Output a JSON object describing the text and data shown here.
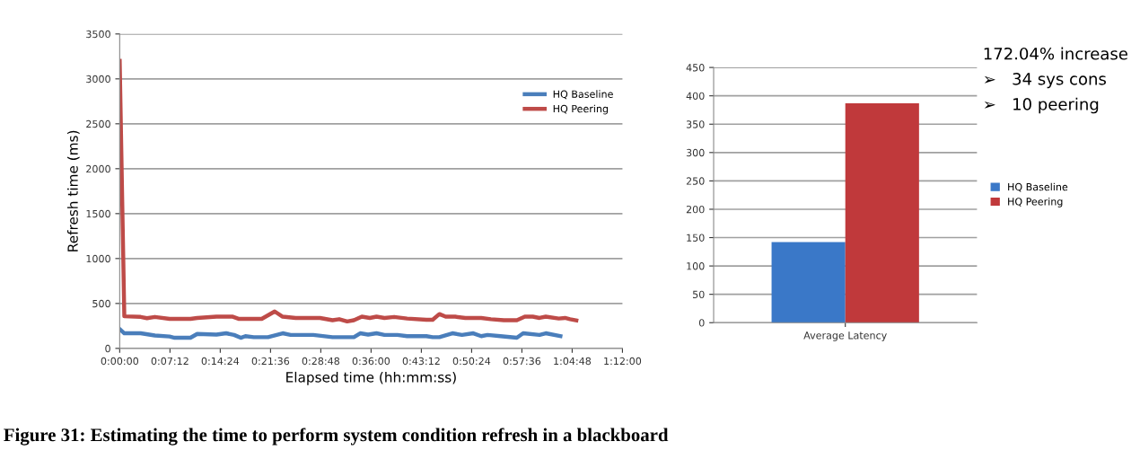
{
  "chart_data": [
    {
      "type": "line",
      "xlabel": "Elapsed time (hh:mm:ss)",
      "ylabel": "Refresh time (ms)",
      "xlim": [
        0,
        1.2
      ],
      "xticks": [
        {
          "value": 0,
          "label": "0:00:00"
        },
        {
          "value": 0.12,
          "label": "0:07:12"
        },
        {
          "value": 0.24,
          "label": "0:14:24"
        },
        {
          "value": 0.36,
          "label": "0:21:36"
        },
        {
          "value": 0.48,
          "label": "0:28:48"
        },
        {
          "value": 0.6,
          "label": "0:36:00"
        },
        {
          "value": 0.72,
          "label": "0:43:12"
        },
        {
          "value": 0.84,
          "label": "0:50:24"
        },
        {
          "value": 0.96,
          "label": "0:57:36"
        },
        {
          "value": 1.08,
          "label": "1:04:48"
        },
        {
          "value": 1.2,
          "label": "1:12:00"
        }
      ],
      "ylim": [
        0,
        3500
      ],
      "yticks": [
        0,
        500,
        1000,
        1500,
        2000,
        2500,
        3000,
        3500
      ],
      "grid": "y",
      "legend": "top right",
      "marker": "none",
      "line_style": "solid",
      "series": [
        {
          "name": "HQ Baseline",
          "color": "#4a7ebb",
          "x": [
            0,
            0.011,
            0.05,
            0.084,
            0.119,
            0.131,
            0.169,
            0.185,
            0.231,
            0.254,
            0.273,
            0.289,
            0.3,
            0.32,
            0.354,
            0.389,
            0.408,
            0.462,
            0.508,
            0.559,
            0.574,
            0.593,
            0.613,
            0.632,
            0.663,
            0.686,
            0.732,
            0.747,
            0.763,
            0.794,
            0.817,
            0.844,
            0.863,
            0.878,
            0.909,
            0.948,
            0.963,
            1.002,
            1.017,
            1.052
          ],
          "values": [
            214,
            168,
            168,
            143,
            132,
            118,
            118,
            161,
            153,
            168,
            150,
            118,
            136,
            125,
            125,
            168,
            150,
            150,
            125,
            125,
            168,
            153,
            168,
            150,
            150,
            136,
            136,
            125,
            125,
            168,
            150,
            168,
            136,
            150,
            136,
            118,
            168,
            150,
            168,
            136
          ]
        },
        {
          "name": "HQ Peering",
          "color": "#be4b48",
          "x": [
            0,
            0.011,
            0.05,
            0.065,
            0.084,
            0.119,
            0.169,
            0.185,
            0.231,
            0.27,
            0.285,
            0.339,
            0.37,
            0.389,
            0.42,
            0.478,
            0.508,
            0.524,
            0.543,
            0.559,
            0.578,
            0.597,
            0.613,
            0.632,
            0.655,
            0.686,
            0.732,
            0.747,
            0.763,
            0.778,
            0.801,
            0.825,
            0.863,
            0.886,
            0.917,
            0.948,
            0.967,
            0.986,
            1.002,
            1.017,
            1.048,
            1.063,
            1.075,
            1.09
          ],
          "values": [
            3200,
            357,
            350,
            336,
            350,
            328,
            328,
            339,
            353,
            353,
            328,
            328,
            411,
            353,
            339,
            339,
            314,
            325,
            300,
            314,
            353,
            339,
            353,
            339,
            350,
            332,
            318,
            318,
            382,
            353,
            353,
            339,
            339,
            325,
            314,
            314,
            353,
            353,
            339,
            353,
            332,
            339,
            325,
            311
          ]
        }
      ],
      "annotations": [
        "Figure 31: Estimating the time to perform system condition refresh in a blackboard"
      ]
    },
    {
      "type": "bar",
      "categories": [
        "Average Latency"
      ],
      "ylim": [
        0,
        450
      ],
      "yticks": [
        0,
        50,
        100,
        150,
        200,
        250,
        300,
        350,
        400,
        450
      ],
      "grid": "y",
      "legend": "right",
      "series": [
        {
          "name": "HQ Baseline",
          "color": "#3a78c8",
          "values": [
            142
          ]
        },
        {
          "name": "HQ Peering",
          "color": "#c0393b",
          "values": [
            387
          ]
        }
      ],
      "annotations": [
        "172.04% increase",
        "➢   34 sys cons",
        "➢   10 peering"
      ]
    }
  ]
}
